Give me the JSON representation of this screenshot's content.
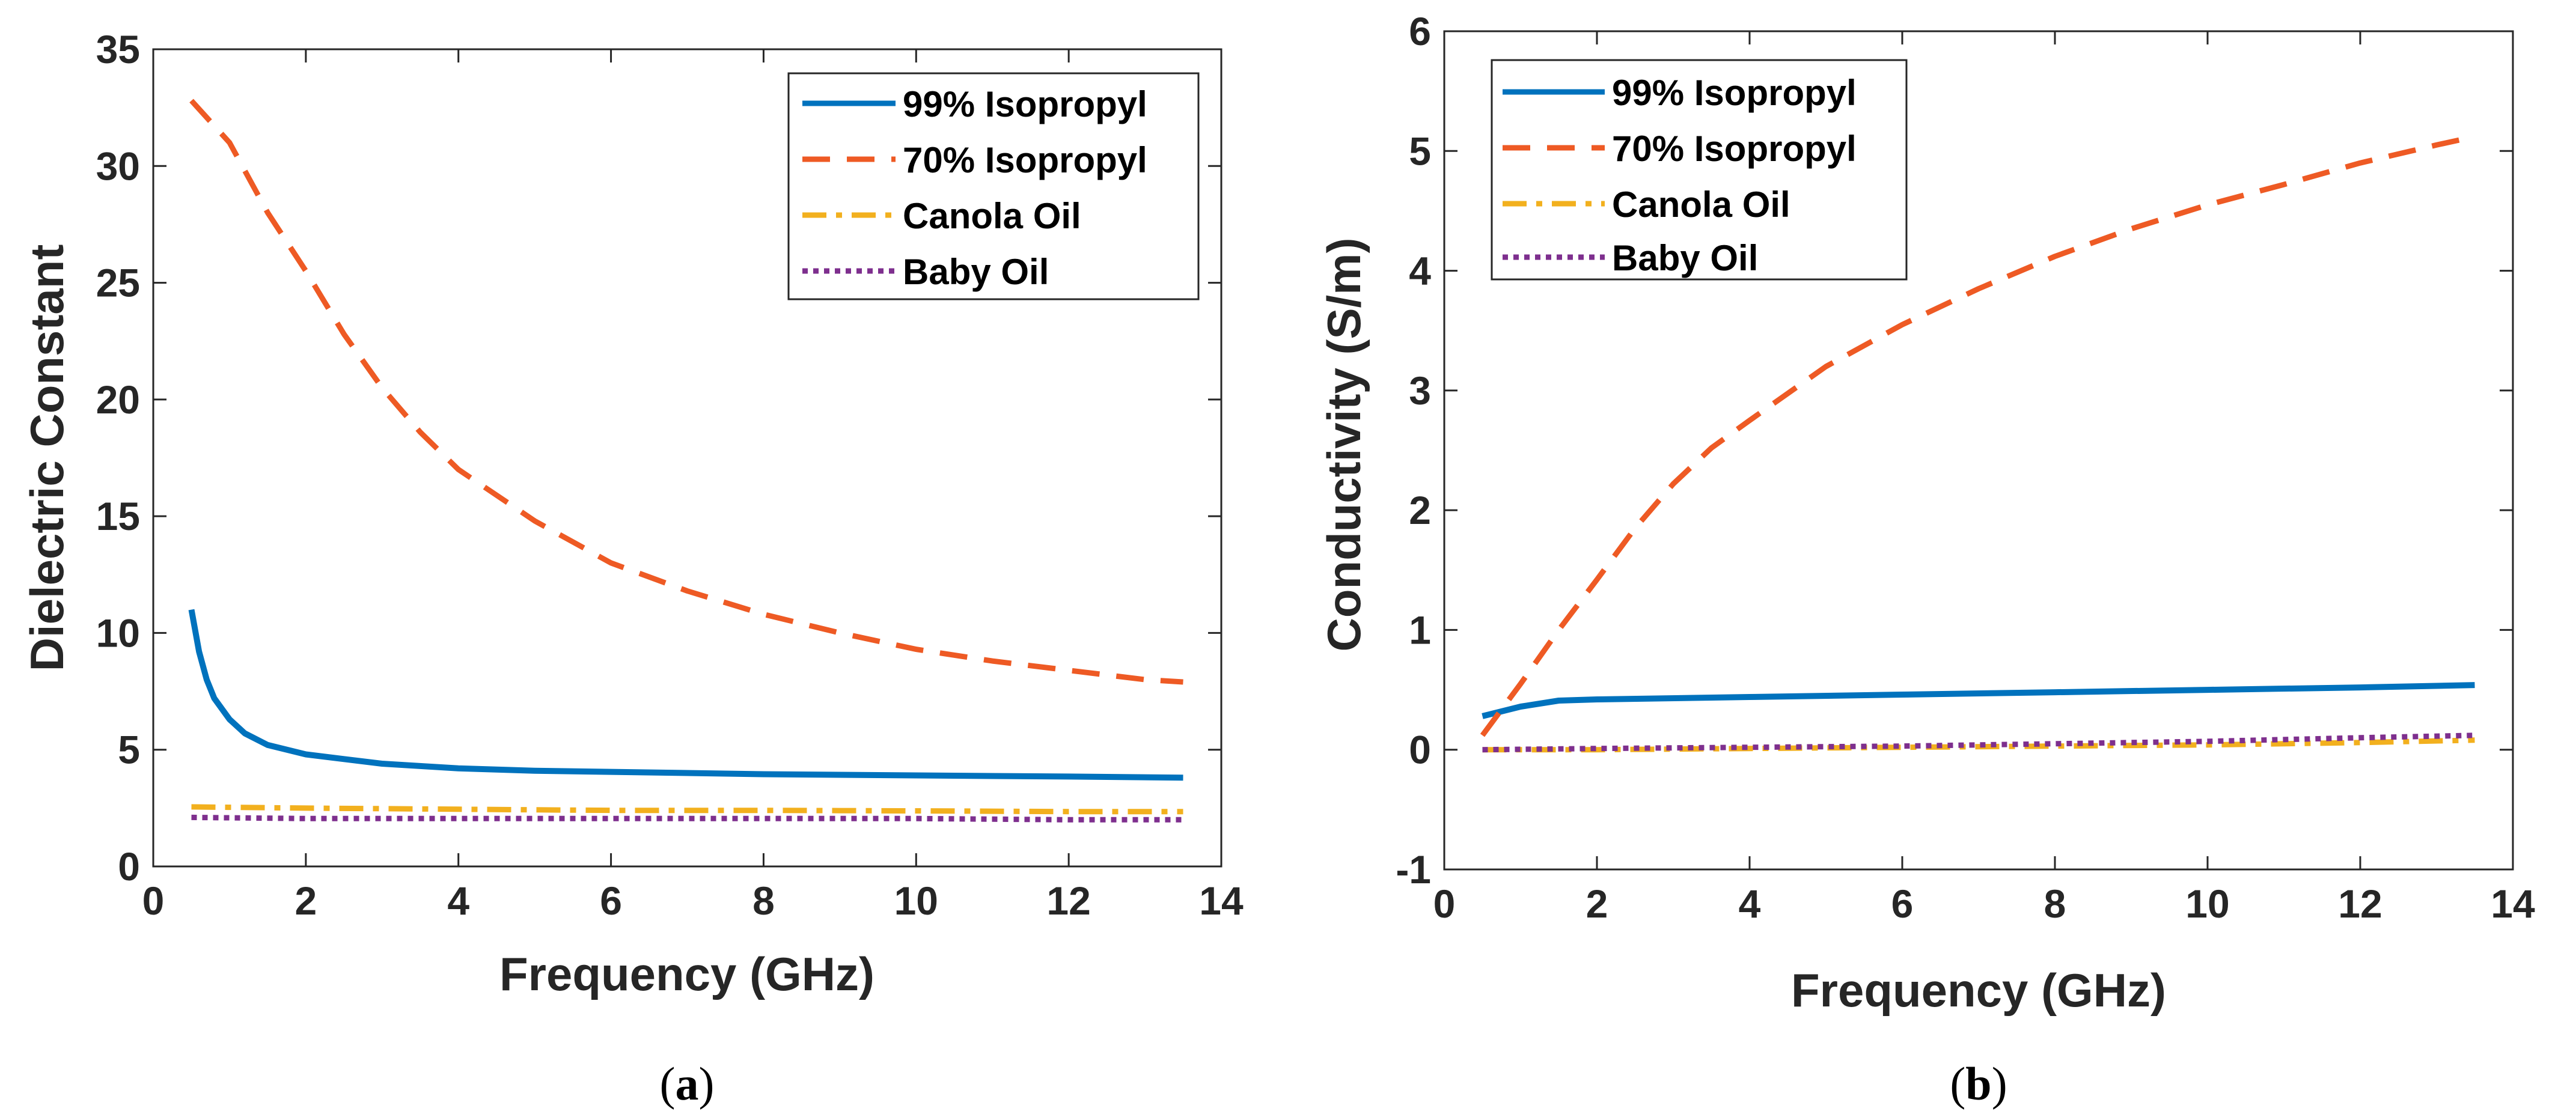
{
  "colors": {
    "s1": "#0072BD",
    "s2": "#EE5A24",
    "s3": "#F2B01E",
    "s4": "#7E2F8E",
    "axis": "#262626"
  },
  "chart_data": [
    {
      "type": "line",
      "caption_letter": "a",
      "xlabel": "Frequency (GHz)",
      "ylabel": "Dielectric Constant",
      "xlim": [
        0,
        14
      ],
      "ylim": [
        0,
        35
      ],
      "xticks": [
        0,
        2,
        4,
        6,
        8,
        10,
        12,
        14
      ],
      "yticks": [
        0,
        5,
        10,
        15,
        20,
        25,
        30,
        35
      ],
      "legend_position": "top-right",
      "series": [
        {
          "name": "99% Isopropyl",
          "color": "#0072BD",
          "dash": "solid",
          "x": [
            0.5,
            0.6,
            0.7,
            0.8,
            1.0,
            1.2,
            1.5,
            2,
            2.5,
            3,
            4,
            5,
            6,
            8,
            10,
            12,
            13.5
          ],
          "y": [
            11.0,
            9.2,
            8.0,
            7.2,
            6.3,
            5.7,
            5.2,
            4.8,
            4.6,
            4.4,
            4.2,
            4.1,
            4.05,
            3.95,
            3.9,
            3.85,
            3.8
          ]
        },
        {
          "name": "70% Isopropyl",
          "color": "#EE5A24",
          "dash": "dashed",
          "x": [
            0.5,
            1,
            1.5,
            2,
            2.5,
            3,
            3.5,
            4,
            5,
            6,
            7,
            8,
            9,
            10,
            11,
            12,
            13,
            13.5
          ],
          "y": [
            32.8,
            31.0,
            28.0,
            25.5,
            22.8,
            20.5,
            18.6,
            17.0,
            14.8,
            13.0,
            11.8,
            10.8,
            10.0,
            9.3,
            8.8,
            8.4,
            8.0,
            7.9
          ]
        },
        {
          "name": "Canola Oil",
          "color": "#F2B01E",
          "dash": "dashdot",
          "x": [
            0.5,
            2,
            4,
            6,
            8,
            10,
            12,
            13.5
          ],
          "y": [
            2.55,
            2.5,
            2.45,
            2.4,
            2.4,
            2.38,
            2.35,
            2.35
          ]
        },
        {
          "name": "Baby Oil",
          "color": "#7E2F8E",
          "dash": "dotted",
          "x": [
            0.5,
            2,
            4,
            6,
            8,
            10,
            12,
            13.5
          ],
          "y": [
            2.1,
            2.05,
            2.05,
            2.05,
            2.05,
            2.05,
            2.0,
            2.0
          ]
        }
      ]
    },
    {
      "type": "line",
      "caption_letter": "b",
      "xlabel": "Frequency (GHz)",
      "ylabel": "Conductivity  (S/m)",
      "xlim": [
        0,
        14
      ],
      "ylim": [
        -1,
        6
      ],
      "xticks": [
        0,
        2,
        4,
        6,
        8,
        10,
        12,
        14
      ],
      "yticks": [
        -1,
        0,
        1,
        2,
        3,
        4,
        5,
        6
      ],
      "legend_position": "top-left",
      "series": [
        {
          "name": "99% Isopropyl",
          "color": "#0072BD",
          "dash": "solid",
          "x": [
            0.5,
            1,
            1.5,
            2,
            4,
            6,
            8,
            10,
            12,
            13.5
          ],
          "y": [
            0.28,
            0.36,
            0.41,
            0.42,
            0.44,
            0.46,
            0.48,
            0.5,
            0.52,
            0.54
          ]
        },
        {
          "name": "70% Isopropyl",
          "color": "#EE5A24",
          "dash": "dashed",
          "x": [
            0.5,
            1,
            1.5,
            2,
            2.5,
            3,
            3.5,
            4,
            5,
            6,
            7,
            8,
            9,
            10,
            11,
            12,
            13,
            13.5
          ],
          "y": [
            0.12,
            0.55,
            1.0,
            1.42,
            1.85,
            2.22,
            2.52,
            2.75,
            3.2,
            3.55,
            3.85,
            4.12,
            4.35,
            4.55,
            4.72,
            4.9,
            5.05,
            5.12
          ]
        },
        {
          "name": "Canola Oil",
          "color": "#F2B01E",
          "dash": "dashdot",
          "x": [
            0.5,
            2,
            4,
            6,
            8,
            10,
            12,
            13.5
          ],
          "y": [
            0.0,
            0.0,
            0.01,
            0.02,
            0.03,
            0.04,
            0.06,
            0.08
          ]
        },
        {
          "name": "Baby Oil",
          "color": "#7E2F8E",
          "dash": "dotted",
          "x": [
            0.5,
            2,
            4,
            6,
            8,
            10,
            12,
            13.5
          ],
          "y": [
            0.0,
            0.01,
            0.02,
            0.03,
            0.05,
            0.07,
            0.1,
            0.12
          ]
        }
      ]
    }
  ]
}
